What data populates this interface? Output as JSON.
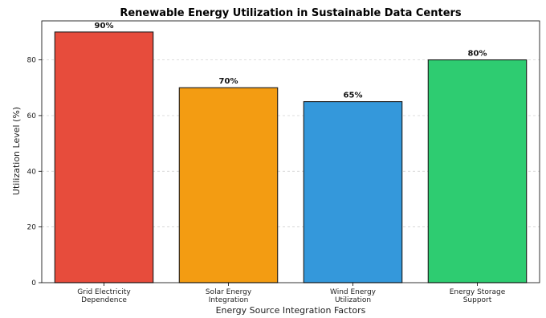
{
  "chart_data": {
    "type": "bar",
    "title": "Renewable Energy Utilization in Sustainable Data Centers",
    "xlabel": "Energy Source Integration Factors",
    "ylabel": "Utilization Level (%)",
    "categories": [
      [
        "Grid Electricity",
        "Dependence"
      ],
      [
        "Solar Energy",
        "Integration"
      ],
      [
        "Wind Energy",
        "Utilization"
      ],
      [
        "Energy Storage",
        "Support"
      ]
    ],
    "values": [
      90,
      70,
      65,
      80
    ],
    "data_labels": [
      "90%",
      "70%",
      "65%",
      "80%"
    ],
    "colors": [
      "#e74c3c",
      "#f39c12",
      "#3498db",
      "#2ecc71"
    ],
    "ylim": [
      0,
      94
    ],
    "yticks": [
      0,
      20,
      40,
      60,
      80
    ],
    "grid": "y-dashed"
  }
}
